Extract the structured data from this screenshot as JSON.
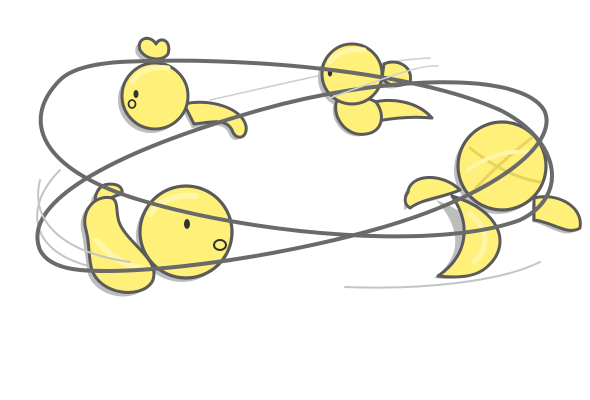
{
  "scene": {
    "description_label": "",
    "colors": {
      "background": "#ffffff",
      "chick_fill": "#fff07a",
      "chick_highlight": "#fff6a8",
      "chick_shadow": "#f3d94f",
      "outline": "#5a5a5a",
      "drop_shadow": "#bdbdbd",
      "orbit_dark": "#6a6a6a",
      "orbit_light": "#c4c4c4",
      "eye": "#333333"
    },
    "characters": [
      {
        "name": "chick-top-left",
        "pose": "flying"
      },
      {
        "name": "chick-top-right",
        "pose": "curled"
      },
      {
        "name": "chick-bottom-left",
        "pose": "reaching"
      },
      {
        "name": "chick-right",
        "pose": "spinning"
      }
    ]
  }
}
